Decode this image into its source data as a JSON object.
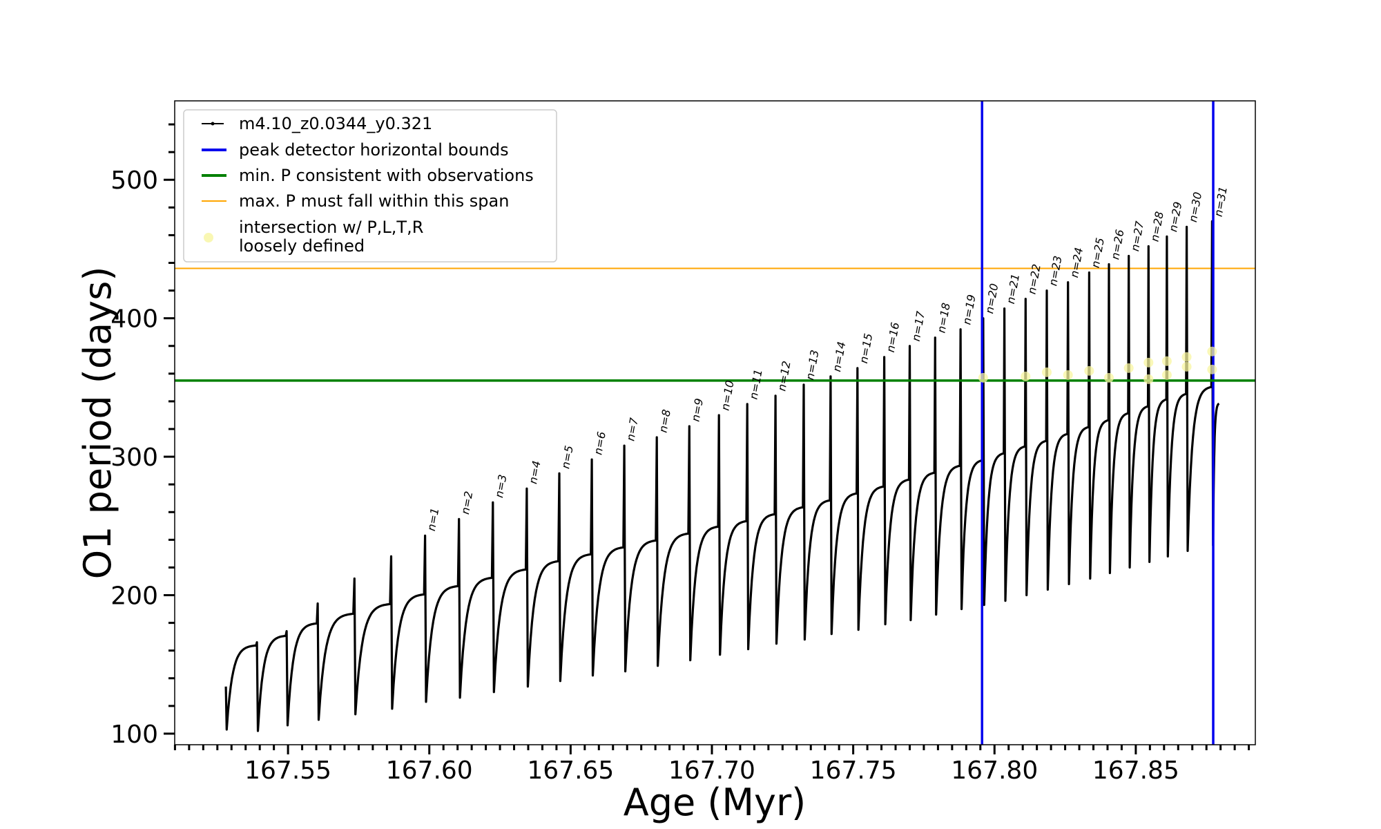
{
  "chart_data": {
    "type": "line",
    "title": "",
    "xlabel": "Age (Myr)",
    "ylabel": "O1 period (days)",
    "xlim": [
      167.5099,
      167.8923
    ],
    "ylim": [
      92,
      557
    ],
    "x_major_ticks": [
      167.55,
      167.6,
      167.65,
      167.7,
      167.75,
      167.8,
      167.85
    ],
    "x_tick_labels": [
      "167.55",
      "167.60",
      "167.65",
      "167.70",
      "167.75",
      "167.80",
      "167.85"
    ],
    "x_minor_step": 0.005,
    "y_major_ticks": [
      100,
      200,
      300,
      400,
      500
    ],
    "y_tick_labels": [
      "100",
      "200",
      "300",
      "400",
      "500"
    ],
    "y_minor_step": 20,
    "grid": false,
    "legend_position": "top-left",
    "legend": [
      {
        "label": "m4.10_z0.0344_y0.321",
        "style": "line-marker",
        "color": "#000000"
      },
      {
        "label": "peak detector horizontal bounds",
        "style": "line",
        "color": "#0000ee"
      },
      {
        "label": "min. P consistent with observations",
        "style": "line",
        "color": "#008000"
      },
      {
        "label": "max. P must fall within this span",
        "style": "line-thin",
        "color": "#ffa500"
      },
      {
        "label": "intersection w/ P,L,T,R",
        "label2": "loosely defined",
        "style": "dot",
        "color": "#f8f5a0"
      }
    ],
    "reference_lines": {
      "vertical_blue": [
        167.7956,
        167.8774
      ],
      "horizontal_green": 355,
      "horizontal_orange": 436
    },
    "series_name": "m4.10_z0.0344_y0.321",
    "start": {
      "x": 167.528,
      "value": 134,
      "trough": 103,
      "plateau": 164
    },
    "pulses": [
      {
        "x": 167.539,
        "peak": 166,
        "trough": 102,
        "plateau": 171
      },
      {
        "x": 167.5495,
        "peak": 174,
        "trough": 106,
        "plateau": 180
      },
      {
        "x": 167.5605,
        "peak": 194,
        "trough": 110,
        "plateau": 187
      },
      {
        "x": 167.5735,
        "peak": 212,
        "trough": 114,
        "plateau": 194
      },
      {
        "x": 167.5865,
        "peak": 228,
        "trough": 118,
        "plateau": 201
      },
      {
        "x": 167.5985,
        "peak": 243,
        "trough": 123,
        "plateau": 207,
        "label": "n=1"
      },
      {
        "x": 167.6105,
        "peak": 255,
        "trough": 126,
        "plateau": 213,
        "label": "n=2"
      },
      {
        "x": 167.6225,
        "peak": 267,
        "trough": 130,
        "plateau": 219,
        "label": "n=3"
      },
      {
        "x": 167.6345,
        "peak": 277,
        "trough": 134,
        "plateau": 225,
        "label": "n=4"
      },
      {
        "x": 167.646,
        "peak": 288,
        "trough": 138,
        "plateau": 230,
        "label": "n=5"
      },
      {
        "x": 167.6575,
        "peak": 298,
        "trough": 142,
        "plateau": 235,
        "label": "n=6"
      },
      {
        "x": 167.669,
        "peak": 308,
        "trough": 145,
        "plateau": 240,
        "label": "n=7"
      },
      {
        "x": 167.6805,
        "peak": 314,
        "trough": 149,
        "plateau": 245,
        "label": "n=8"
      },
      {
        "x": 167.692,
        "peak": 322,
        "trough": 153,
        "plateau": 250,
        "label": "n=9"
      },
      {
        "x": 167.7025,
        "peak": 330,
        "trough": 157,
        "plateau": 254,
        "label": "n=10"
      },
      {
        "x": 167.7125,
        "peak": 338,
        "trough": 161,
        "plateau": 259,
        "label": "n=11"
      },
      {
        "x": 167.7225,
        "peak": 344,
        "trough": 165,
        "plateau": 264,
        "label": "n=12"
      },
      {
        "x": 167.7325,
        "peak": 352,
        "trough": 168,
        "plateau": 269,
        "label": "n=13"
      },
      {
        "x": 167.742,
        "peak": 358,
        "trough": 172,
        "plateau": 274,
        "label": "n=14"
      },
      {
        "x": 167.7515,
        "peak": 364,
        "trough": 175,
        "plateau": 279,
        "label": "n=15"
      },
      {
        "x": 167.761,
        "peak": 372,
        "trough": 179,
        "plateau": 284,
        "label": "n=16"
      },
      {
        "x": 167.77,
        "peak": 380,
        "trough": 182,
        "plateau": 289,
        "label": "n=17"
      },
      {
        "x": 167.779,
        "peak": 386,
        "trough": 186,
        "plateau": 294,
        "label": "n=18"
      },
      {
        "x": 167.788,
        "peak": 392,
        "trough": 190,
        "plateau": 298,
        "label": "n=19"
      },
      {
        "x": 167.796,
        "peak": 400,
        "trough": 193,
        "plateau": 303,
        "label": "n=20"
      },
      {
        "x": 167.8035,
        "peak": 407,
        "trough": 196,
        "plateau": 308,
        "label": "n=21"
      },
      {
        "x": 167.811,
        "peak": 414,
        "trough": 200,
        "plateau": 312,
        "label": "n=22"
      },
      {
        "x": 167.8185,
        "peak": 420,
        "trough": 204,
        "plateau": 317,
        "label": "n=23"
      },
      {
        "x": 167.826,
        "peak": 426,
        "trough": 208,
        "plateau": 322,
        "label": "n=24"
      },
      {
        "x": 167.8335,
        "peak": 433,
        "trough": 212,
        "plateau": 327,
        "label": "n=25"
      },
      {
        "x": 167.8405,
        "peak": 439,
        "trough": 216,
        "plateau": 332,
        "label": "n=26"
      },
      {
        "x": 167.8475,
        "peak": 445,
        "trough": 220,
        "plateau": 337,
        "label": "n=27"
      },
      {
        "x": 167.8545,
        "peak": 452,
        "trough": 224,
        "plateau": 342,
        "label": "n=28"
      },
      {
        "x": 167.861,
        "peak": 459,
        "trough": 228,
        "plateau": 346,
        "label": "n=29"
      },
      {
        "x": 167.868,
        "peak": 466,
        "trough": 232,
        "plateau": 351,
        "label": "n=30"
      },
      {
        "x": 167.877,
        "peak": 470,
        "trough": 236,
        "plateau": 339,
        "label": "n=31"
      }
    ],
    "end_x": 167.8795,
    "intersections": [
      {
        "x": 167.796,
        "y": 357
      },
      {
        "x": 167.811,
        "y": 358
      },
      {
        "x": 167.8185,
        "y": 361
      },
      {
        "x": 167.826,
        "y": 359
      },
      {
        "x": 167.8335,
        "y": 362
      },
      {
        "x": 167.8405,
        "y": 357
      },
      {
        "x": 167.8475,
        "y": 364
      },
      {
        "x": 167.8545,
        "y": 368
      },
      {
        "x": 167.8545,
        "y": 356
      },
      {
        "x": 167.861,
        "y": 369
      },
      {
        "x": 167.861,
        "y": 359
      },
      {
        "x": 167.868,
        "y": 372
      },
      {
        "x": 167.868,
        "y": 365
      },
      {
        "x": 167.877,
        "y": 376
      },
      {
        "x": 167.877,
        "y": 363
      }
    ]
  }
}
